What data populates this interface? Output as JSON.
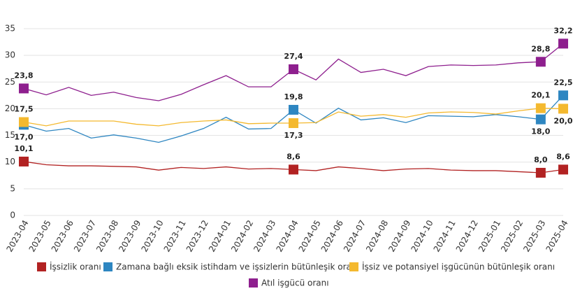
{
  "chart_data": {
    "type": "line",
    "categories": [
      "2023-04",
      "2023-05",
      "2023-06",
      "2023-07",
      "2023-08",
      "2023-09",
      "2023-10",
      "2023-11",
      "2023-12",
      "2024-01",
      "2024-02",
      "2024-03",
      "2024-04",
      "2024-05",
      "2024-06",
      "2024-07",
      "2024-08",
      "2024-09",
      "2024-10",
      "2024-11",
      "2024-12",
      "2025-01",
      "2025-02",
      "2025-03",
      "2025-04"
    ],
    "series": [
      {
        "name": "İşsizlik oranı",
        "color": "#b22222",
        "values": [
          10.1,
          9.5,
          9.3,
          9.3,
          9.2,
          9.1,
          8.5,
          9.0,
          8.8,
          9.1,
          8.7,
          8.8,
          8.6,
          8.4,
          9.1,
          8.8,
          8.4,
          8.7,
          8.8,
          8.5,
          8.4,
          8.4,
          8.2,
          8.0,
          8.6
        ],
        "value_labels": [
          "10,1",
          null,
          null,
          null,
          null,
          null,
          null,
          null,
          null,
          null,
          null,
          null,
          "8,6",
          null,
          null,
          null,
          null,
          null,
          null,
          null,
          null,
          null,
          null,
          "8,0",
          "8,6"
        ]
      },
      {
        "name": "Zamana bağlı eksik istihdam ve işsizlerin bütünleşik oranı",
        "color": "#2e86c1",
        "values": [
          17.0,
          15.8,
          16.3,
          14.5,
          15.1,
          14.5,
          13.7,
          14.9,
          16.3,
          18.4,
          16.2,
          16.3,
          19.8,
          17.3,
          20.1,
          17.9,
          18.3,
          17.4,
          18.7,
          18.6,
          18.5,
          18.9,
          18.5,
          18.0,
          22.5
        ],
        "value_labels": [
          "17,0",
          null,
          null,
          null,
          null,
          null,
          null,
          null,
          null,
          null,
          null,
          null,
          "19,8",
          null,
          null,
          null,
          null,
          null,
          null,
          null,
          null,
          null,
          null,
          "18,0",
          "22,5"
        ]
      },
      {
        "name": "İşsiz ve potansiyel işgücünün bütünleşik oranı",
        "color": "#f4b92f",
        "values": [
          17.5,
          16.8,
          17.7,
          17.7,
          17.7,
          17.1,
          16.8,
          17.4,
          17.7,
          17.9,
          17.2,
          17.3,
          17.3,
          17.4,
          19.4,
          18.6,
          18.9,
          18.4,
          19.2,
          19.4,
          19.3,
          19.0,
          19.6,
          20.1,
          20.0
        ],
        "value_labels": [
          "17,5",
          null,
          null,
          null,
          null,
          null,
          null,
          null,
          null,
          null,
          null,
          null,
          "17,3",
          null,
          null,
          null,
          null,
          null,
          null,
          null,
          null,
          null,
          null,
          "20,1",
          "20,0"
        ]
      },
      {
        "name": "Atıl işgücü oranı",
        "color": "#8e1f8e",
        "values": [
          23.8,
          22.6,
          24.0,
          22.5,
          23.1,
          22.1,
          21.5,
          22.7,
          24.5,
          26.2,
          24.1,
          24.1,
          27.4,
          25.4,
          29.3,
          26.8,
          27.4,
          26.2,
          27.9,
          28.2,
          28.1,
          28.2,
          28.6,
          28.8,
          32.2
        ],
        "value_labels": [
          "23,8",
          null,
          null,
          null,
          null,
          null,
          null,
          null,
          null,
          null,
          null,
          null,
          "27,4",
          null,
          null,
          null,
          null,
          null,
          null,
          null,
          null,
          null,
          null,
          "28,8",
          "32,2"
        ]
      }
    ],
    "ylim": [
      0,
      35
    ],
    "yticks": [
      0,
      5,
      10,
      15,
      20,
      25,
      30,
      35
    ],
    "grid": true
  }
}
